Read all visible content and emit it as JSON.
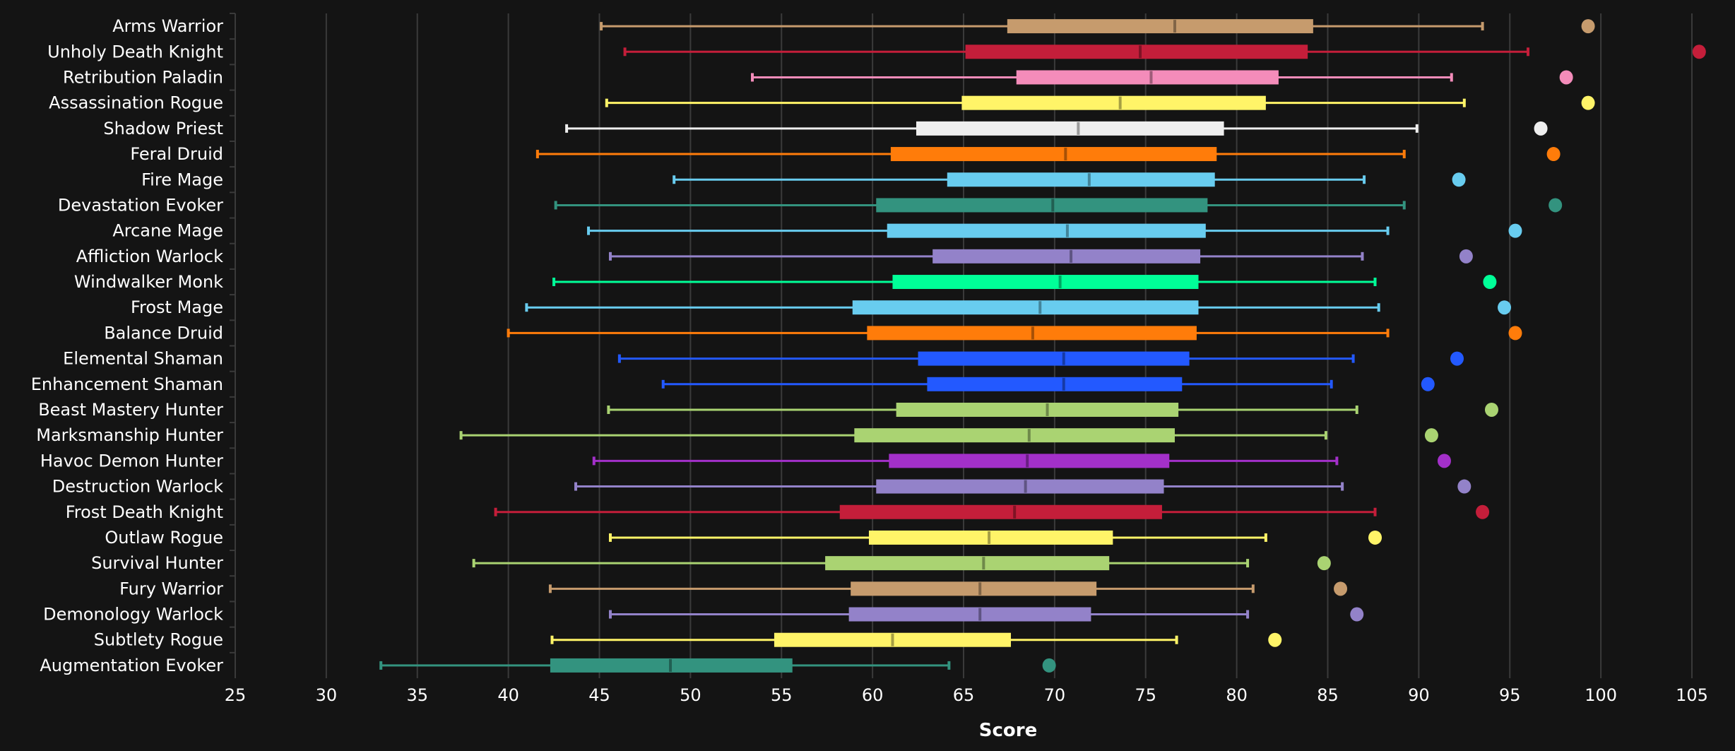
{
  "chart_data": {
    "type": "boxplot",
    "title": "",
    "xlabel": "Score",
    "ylabel": "",
    "xlim": [
      25,
      105
    ],
    "xticks": [
      25,
      30,
      35,
      40,
      45,
      50,
      55,
      60,
      65,
      70,
      75,
      80,
      85,
      90,
      95,
      100,
      105
    ],
    "grid": true,
    "legend": "none",
    "series": [
      {
        "name": "Arms Warrior",
        "color": "#C69B6D",
        "min": 45.1,
        "q1": 67.4,
        "median": 76.6,
        "q3": 84.2,
        "max": 93.5,
        "outlier": 99.3
      },
      {
        "name": "Unholy Death Knight",
        "color": "#C41E3A",
        "min": 46.4,
        "q1": 65.1,
        "median": 74.7,
        "q3": 83.9,
        "max": 96.0,
        "outlier": 105.4
      },
      {
        "name": "Retribution Paladin",
        "color": "#F48CBA",
        "min": 53.4,
        "q1": 67.9,
        "median": 75.3,
        "q3": 82.3,
        "max": 91.8,
        "outlier": 98.1
      },
      {
        "name": "Assassination Rogue",
        "color": "#FFF468",
        "min": 45.4,
        "q1": 64.9,
        "median": 73.6,
        "q3": 81.6,
        "max": 92.5,
        "outlier": 99.3
      },
      {
        "name": "Shadow Priest",
        "color": "#EEEEEE",
        "min": 43.2,
        "q1": 62.4,
        "median": 71.3,
        "q3": 79.3,
        "max": 89.9,
        "outlier": 96.7
      },
      {
        "name": "Feral Druid",
        "color": "#FF7C0A",
        "min": 41.6,
        "q1": 61.0,
        "median": 70.6,
        "q3": 78.9,
        "max": 89.2,
        "outlier": 97.4
      },
      {
        "name": "Fire Mage",
        "color": "#68CCEF",
        "min": 49.1,
        "q1": 64.1,
        "median": 71.9,
        "q3": 78.8,
        "max": 87.0,
        "outlier": 92.2
      },
      {
        "name": "Devastation Evoker",
        "color": "#33937F",
        "min": 42.6,
        "q1": 60.2,
        "median": 69.9,
        "q3": 78.4,
        "max": 89.2,
        "outlier": 97.5
      },
      {
        "name": "Arcane Mage",
        "color": "#68CCEF",
        "min": 44.4,
        "q1": 60.8,
        "median": 70.7,
        "q3": 78.3,
        "max": 88.3,
        "outlier": 95.3
      },
      {
        "name": "Affliction Warlock",
        "color": "#9382C9",
        "min": 45.6,
        "q1": 63.3,
        "median": 70.9,
        "q3": 78.0,
        "max": 86.9,
        "outlier": 92.6
      },
      {
        "name": "Windwalker Monk",
        "color": "#00FF98",
        "min": 42.5,
        "q1": 61.1,
        "median": 70.3,
        "q3": 77.9,
        "max": 87.6,
        "outlier": 93.9
      },
      {
        "name": "Frost Mage",
        "color": "#68CCEF",
        "min": 41.0,
        "q1": 58.9,
        "median": 69.2,
        "q3": 77.9,
        "max": 87.8,
        "outlier": 94.7
      },
      {
        "name": "Balance Druid",
        "color": "#FF7C0A",
        "min": 40.0,
        "q1": 59.7,
        "median": 68.8,
        "q3": 77.8,
        "max": 88.3,
        "outlier": 95.3
      },
      {
        "name": "Elemental Shaman",
        "color": "#2359FF",
        "min": 46.1,
        "q1": 62.5,
        "median": 70.5,
        "q3": 77.4,
        "max": 86.4,
        "outlier": 92.1
      },
      {
        "name": "Enhancement Shaman",
        "color": "#2359FF",
        "min": 48.5,
        "q1": 63.0,
        "median": 70.5,
        "q3": 77.0,
        "max": 85.2,
        "outlier": 90.5
      },
      {
        "name": "Beast Mastery Hunter",
        "color": "#AAD372",
        "min": 45.5,
        "q1": 61.3,
        "median": 69.6,
        "q3": 76.8,
        "max": 86.6,
        "outlier": 94.0
      },
      {
        "name": "Marksmanship Hunter",
        "color": "#AAD372",
        "min": 37.4,
        "q1": 59.0,
        "median": 68.6,
        "q3": 76.6,
        "max": 84.9,
        "outlier": 90.7
      },
      {
        "name": "Havoc Demon Hunter",
        "color": "#A330C9",
        "min": 44.7,
        "q1": 60.9,
        "median": 68.5,
        "q3": 76.3,
        "max": 85.5,
        "outlier": 91.4
      },
      {
        "name": "Destruction Warlock",
        "color": "#9382C9",
        "min": 43.7,
        "q1": 60.2,
        "median": 68.4,
        "q3": 76.0,
        "max": 85.8,
        "outlier": 92.5
      },
      {
        "name": "Frost Death Knight",
        "color": "#C41E3A",
        "min": 39.3,
        "q1": 58.2,
        "median": 67.8,
        "q3": 75.9,
        "max": 87.6,
        "outlier": 93.5
      },
      {
        "name": "Outlaw Rogue",
        "color": "#FFF468",
        "min": 45.6,
        "q1": 59.8,
        "median": 66.4,
        "q3": 73.2,
        "max": 81.6,
        "outlier": 87.6
      },
      {
        "name": "Survival Hunter",
        "color": "#AAD372",
        "min": 38.1,
        "q1": 57.4,
        "median": 66.1,
        "q3": 73.0,
        "max": 80.6,
        "outlier": 84.8
      },
      {
        "name": "Fury Warrior",
        "color": "#C69B6D",
        "min": 42.3,
        "q1": 58.8,
        "median": 65.9,
        "q3": 72.3,
        "max": 80.9,
        "outlier": 85.7
      },
      {
        "name": "Demonology Warlock",
        "color": "#9382C9",
        "min": 45.6,
        "q1": 58.7,
        "median": 65.9,
        "q3": 72.0,
        "max": 80.6,
        "outlier": 86.6
      },
      {
        "name": "Subtlety Rogue",
        "color": "#FFF468",
        "min": 42.4,
        "q1": 54.6,
        "median": 61.1,
        "q3": 67.6,
        "max": 76.7,
        "outlier": 82.1
      },
      {
        "name": "Augmentation Evoker",
        "color": "#33937F",
        "min": 33.0,
        "q1": 42.3,
        "median": 48.9,
        "q3": 55.6,
        "max": 64.2,
        "outlier": 69.7
      }
    ]
  }
}
